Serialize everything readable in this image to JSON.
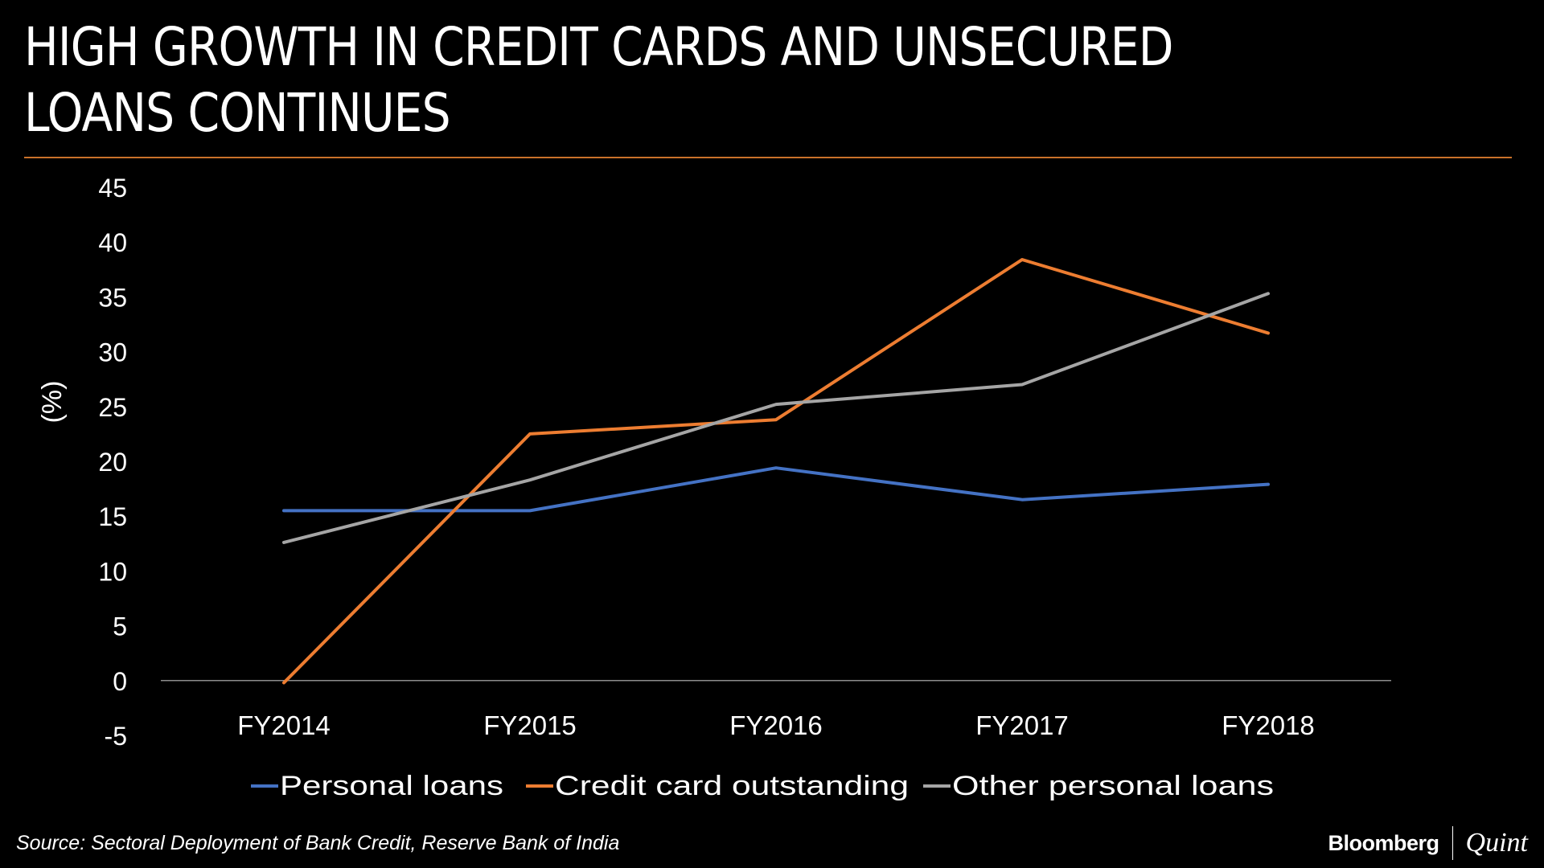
{
  "title": "HIGH GROWTH IN CREDIT CARDS AND UNSECURED LOANS CONTINUES",
  "source": "Source: Sectoral Deployment of Bank Credit, Reserve Bank of India",
  "branding": {
    "primary": "Bloomberg",
    "secondary": "Quint"
  },
  "colors": {
    "background": "#000000",
    "title_rule": "#c9712a",
    "axis": "#8c8c8c"
  },
  "chart_data": {
    "type": "line",
    "title": "HIGH GROWTH IN CREDIT CARDS AND UNSECURED LOANS CONTINUES",
    "xlabel": "",
    "ylabel": "(%)",
    "categories": [
      "FY2014",
      "FY2015",
      "FY2016",
      "FY2017",
      "FY2018"
    ],
    "ylim": [
      -5,
      45
    ],
    "yticks": [
      -5,
      0,
      5,
      10,
      15,
      20,
      25,
      30,
      35,
      40,
      45
    ],
    "grid": false,
    "legend_position": "bottom",
    "series": [
      {
        "name": "Personal loans",
        "color": "#4472c4",
        "values": [
          15.5,
          15.5,
          19.4,
          16.5,
          17.9
        ]
      },
      {
        "name": "Credit card outstanding",
        "color": "#ed7d31",
        "values": [
          -0.2,
          22.5,
          23.8,
          38.4,
          31.7
        ]
      },
      {
        "name": "Other personal loans",
        "color": "#a5a5a5",
        "values": [
          12.6,
          18.3,
          25.2,
          27.0,
          35.3
        ]
      }
    ]
  }
}
